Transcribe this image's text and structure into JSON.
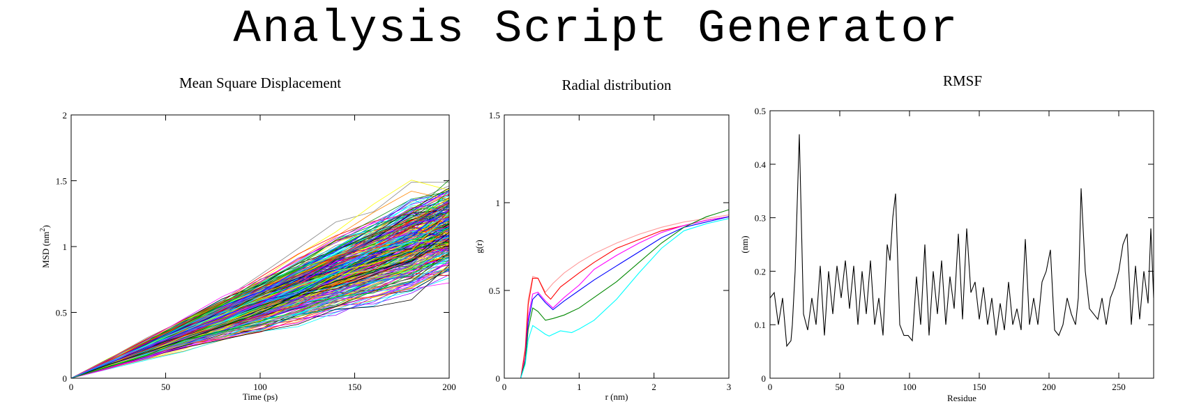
{
  "banner": "Analysis Script Generator",
  "chart_data": [
    {
      "type": "line",
      "title": "Mean Square Displacement",
      "xlabel": "Time (ps)",
      "ylabel": "MSD (nm",
      "ylabel_sup": "2",
      "ylabel_close": ")",
      "xlim": [
        0,
        200
      ],
      "ylim": [
        0,
        2
      ],
      "xticks": [
        0,
        50,
        100,
        150,
        200
      ],
      "yticks": [
        0,
        0.5,
        1,
        1.5,
        2
      ],
      "grid": false,
      "legend": "none",
      "series_count": 300,
      "final_msd_min": 0.65,
      "final_msd_max": 1.58,
      "colors": [
        "#000000",
        "#ff0000",
        "#00cc00",
        "#0000ff",
        "#ffff00",
        "#00ffff",
        "#ff00ff",
        "#ff8800",
        "#8800ff",
        "#888888",
        "#008800",
        "#00aaff"
      ]
    },
    {
      "type": "line",
      "title": "Radial distribution",
      "xlabel": "r (nm)",
      "ylabel": "g(r)",
      "xlim": [
        0,
        3
      ],
      "ylim": [
        0,
        1.5
      ],
      "xticks": [
        0,
        1,
        2,
        3
      ],
      "yticks": [
        0,
        0.5,
        1,
        1.5
      ],
      "grid": false,
      "legend": "none",
      "series": [
        {
          "color": "#ff9999",
          "x": [
            0.22,
            0.28,
            0.32,
            0.38,
            0.45,
            0.55,
            0.65,
            0.8,
            1.0,
            1.2,
            1.5,
            1.8,
            2.1,
            2.4,
            2.7,
            3.0
          ],
          "y": [
            0,
            0.18,
            0.45,
            0.58,
            0.57,
            0.49,
            0.54,
            0.6,
            0.66,
            0.71,
            0.77,
            0.82,
            0.86,
            0.89,
            0.91,
            0.93
          ]
        },
        {
          "color": "#ff0000",
          "x": [
            0.22,
            0.28,
            0.32,
            0.38,
            0.45,
            0.55,
            0.62,
            0.75,
            1.0,
            1.2,
            1.5,
            1.8,
            2.1,
            2.4,
            2.7,
            3.0
          ],
          "y": [
            0,
            0.16,
            0.42,
            0.57,
            0.57,
            0.48,
            0.45,
            0.52,
            0.6,
            0.66,
            0.74,
            0.79,
            0.84,
            0.87,
            0.9,
            0.92
          ]
        },
        {
          "color": "#ff00ff",
          "x": [
            0.22,
            0.28,
            0.32,
            0.38,
            0.45,
            0.55,
            0.65,
            0.8,
            1.0,
            1.2,
            1.5,
            1.8,
            2.1,
            2.4,
            2.7,
            3.0
          ],
          "y": [
            0,
            0.12,
            0.35,
            0.48,
            0.49,
            0.44,
            0.4,
            0.46,
            0.53,
            0.62,
            0.7,
            0.77,
            0.83,
            0.87,
            0.9,
            0.92
          ]
        },
        {
          "color": "#0000ff",
          "x": [
            0.22,
            0.28,
            0.32,
            0.38,
            0.45,
            0.55,
            0.65,
            0.8,
            1.0,
            1.2,
            1.5,
            1.8,
            2.1,
            2.4,
            2.7,
            3.0
          ],
          "y": [
            0,
            0.1,
            0.32,
            0.45,
            0.48,
            0.43,
            0.39,
            0.44,
            0.5,
            0.56,
            0.64,
            0.72,
            0.8,
            0.86,
            0.89,
            0.92
          ]
        },
        {
          "color": "#008800",
          "x": [
            0.22,
            0.28,
            0.32,
            0.38,
            0.45,
            0.55,
            0.65,
            0.8,
            1.0,
            1.2,
            1.5,
            1.8,
            2.1,
            2.4,
            2.7,
            3.0
          ],
          "y": [
            0,
            0.1,
            0.28,
            0.4,
            0.38,
            0.33,
            0.34,
            0.36,
            0.4,
            0.46,
            0.55,
            0.66,
            0.77,
            0.86,
            0.92,
            0.96
          ]
        },
        {
          "color": "#00ffff",
          "x": [
            0.22,
            0.28,
            0.32,
            0.38,
            0.45,
            0.55,
            0.6,
            0.75,
            0.9,
            1.0,
            1.2,
            1.5,
            1.8,
            2.1,
            2.4,
            2.7,
            3.0
          ],
          "y": [
            0,
            0.08,
            0.22,
            0.3,
            0.28,
            0.25,
            0.24,
            0.27,
            0.26,
            0.28,
            0.33,
            0.45,
            0.6,
            0.74,
            0.84,
            0.88,
            0.91
          ]
        }
      ]
    },
    {
      "type": "line",
      "title": "RMSF",
      "xlabel": "Residue",
      "ylabel": "(nm)",
      "xlim": [
        0,
        275
      ],
      "ylim": [
        0,
        0.5
      ],
      "xticks": [
        0,
        50,
        100,
        150,
        200,
        250
      ],
      "yticks": [
        0,
        0.1,
        0.2,
        0.3,
        0.4,
        0.5
      ],
      "grid": false,
      "legend": "none",
      "series": [
        {
          "color": "#000000",
          "x": [
            0,
            3,
            6,
            9,
            12,
            15,
            16,
            18,
            21,
            24,
            27,
            30,
            33,
            36,
            39,
            42,
            45,
            48,
            51,
            54,
            57,
            60,
            63,
            66,
            69,
            72,
            75,
            78,
            81,
            84,
            86,
            88,
            90,
            93,
            96,
            99,
            102,
            105,
            108,
            111,
            114,
            117,
            120,
            123,
            126,
            129,
            132,
            135,
            138,
            141,
            144,
            147,
            150,
            153,
            156,
            159,
            162,
            165,
            168,
            171,
            174,
            177,
            180,
            183,
            186,
            189,
            192,
            195,
            198,
            201,
            204,
            207,
            210,
            213,
            216,
            219,
            221,
            223,
            226,
            229,
            232,
            235,
            238,
            241,
            244,
            247,
            250,
            253,
            256,
            259,
            262,
            265,
            268,
            271,
            273,
            275
          ],
          "y": [
            0.15,
            0.16,
            0.1,
            0.15,
            0.06,
            0.07,
            0.1,
            0.2,
            0.456,
            0.12,
            0.09,
            0.15,
            0.1,
            0.21,
            0.08,
            0.2,
            0.12,
            0.21,
            0.15,
            0.22,
            0.13,
            0.21,
            0.1,
            0.2,
            0.12,
            0.22,
            0.1,
            0.15,
            0.08,
            0.25,
            0.22,
            0.3,
            0.345,
            0.1,
            0.08,
            0.08,
            0.07,
            0.19,
            0.1,
            0.25,
            0.08,
            0.2,
            0.12,
            0.22,
            0.1,
            0.19,
            0.13,
            0.27,
            0.11,
            0.28,
            0.16,
            0.18,
            0.11,
            0.17,
            0.1,
            0.15,
            0.08,
            0.14,
            0.09,
            0.18,
            0.1,
            0.13,
            0.09,
            0.26,
            0.1,
            0.15,
            0.1,
            0.18,
            0.2,
            0.24,
            0.09,
            0.08,
            0.1,
            0.15,
            0.12,
            0.1,
            0.15,
            0.355,
            0.2,
            0.13,
            0.12,
            0.11,
            0.15,
            0.1,
            0.15,
            0.17,
            0.2,
            0.25,
            0.27,
            0.1,
            0.21,
            0.11,
            0.2,
            0.14,
            0.28,
            0.15
          ]
        }
      ]
    }
  ]
}
